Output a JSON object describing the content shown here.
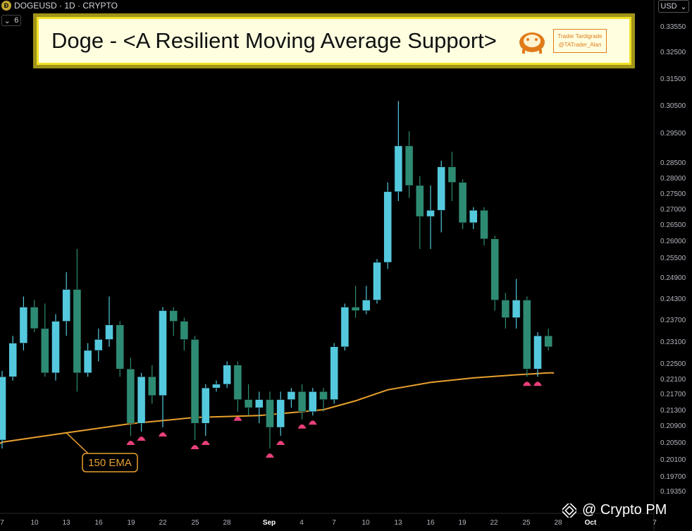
{
  "header": {
    "symbol": "DOGEUSD · 1D · CRYPTO",
    "interval_badge": "6",
    "currency": "USD"
  },
  "banner": {
    "title": "Doge - <A Resilient Moving Average Support>",
    "brand_line1": "Trader Tardigrade",
    "brand_line2": "@TATrader_Alan"
  },
  "watermark": "@ Crypto PM",
  "colors": {
    "background": "#000000",
    "bull_candle": "#54c9de",
    "bear_candle": "#2e8b73",
    "ema_line": "#e8a02e",
    "support_marker": "#e8407a",
    "banner_border": "#f0e226",
    "banner_fill": "#ffffe0"
  },
  "chart_data": {
    "type": "candlestick",
    "y_axis_labels": [
      "0.33550",
      "0.32500",
      "0.31500",
      "0.30500",
      "0.29500",
      "0.28500",
      "0.28000",
      "0.27500",
      "0.27000",
      "0.26500",
      "0.26000",
      "0.25500",
      "0.24900",
      "0.24300",
      "0.23700",
      "0.23100",
      "0.22500",
      "0.22100",
      "0.21700",
      "0.21300",
      "0.20900",
      "0.20500",
      "0.20100",
      "0.19700",
      "0.19350"
    ],
    "x_axis_labels": [
      "7",
      "10",
      "13",
      "16",
      "19",
      "22",
      "25",
      "28",
      "Sep",
      "4",
      "7",
      "10",
      "13",
      "16",
      "19",
      "22",
      "25",
      "28",
      "Oct",
      "7"
    ],
    "series": [
      {
        "o": 0.2055,
        "h": 0.223,
        "l": 0.2035,
        "c": 0.2215
      },
      {
        "o": 0.2215,
        "h": 0.2325,
        "l": 0.2205,
        "c": 0.2305
      },
      {
        "o": 0.2305,
        "h": 0.2435,
        "l": 0.2285,
        "c": 0.2405
      },
      {
        "o": 0.2405,
        "h": 0.2425,
        "l": 0.2335,
        "c": 0.2345
      },
      {
        "o": 0.2345,
        "h": 0.2415,
        "l": 0.2215,
        "c": 0.2225
      },
      {
        "o": 0.2225,
        "h": 0.2385,
        "l": 0.2205,
        "c": 0.2365
      },
      {
        "o": 0.2365,
        "h": 0.2505,
        "l": 0.2325,
        "c": 0.2455
      },
      {
        "o": 0.2455,
        "h": 0.2575,
        "l": 0.2175,
        "c": 0.2225
      },
      {
        "o": 0.2225,
        "h": 0.2305,
        "l": 0.2215,
        "c": 0.2285
      },
      {
        "o": 0.2285,
        "h": 0.2345,
        "l": 0.2255,
        "c": 0.2315
      },
      {
        "o": 0.2315,
        "h": 0.2435,
        "l": 0.2295,
        "c": 0.2355
      },
      {
        "o": 0.2355,
        "h": 0.2365,
        "l": 0.2215,
        "c": 0.2235
      },
      {
        "o": 0.2235,
        "h": 0.2265,
        "l": 0.2065,
        "c": 0.2095
      },
      {
        "o": 0.2095,
        "h": 0.2225,
        "l": 0.2075,
        "c": 0.2215
      },
      {
        "o": 0.2215,
        "h": 0.2245,
        "l": 0.2145,
        "c": 0.2165
      },
      {
        "o": 0.2165,
        "h": 0.2405,
        "l": 0.2085,
        "c": 0.2395
      },
      {
        "o": 0.2395,
        "h": 0.2405,
        "l": 0.2325,
        "c": 0.2365
      },
      {
        "o": 0.2365,
        "h": 0.2375,
        "l": 0.2285,
        "c": 0.2315
      },
      {
        "o": 0.2315,
        "h": 0.2325,
        "l": 0.2055,
        "c": 0.2095
      },
      {
        "o": 0.2095,
        "h": 0.2195,
        "l": 0.2065,
        "c": 0.2185
      },
      {
        "o": 0.2185,
        "h": 0.2205,
        "l": 0.2175,
        "c": 0.2195
      },
      {
        "o": 0.2195,
        "h": 0.2255,
        "l": 0.2185,
        "c": 0.2245
      },
      {
        "o": 0.2245,
        "h": 0.2255,
        "l": 0.2125,
        "c": 0.2155
      },
      {
        "o": 0.2155,
        "h": 0.2195,
        "l": 0.2115,
        "c": 0.2135
      },
      {
        "o": 0.2135,
        "h": 0.2175,
        "l": 0.2095,
        "c": 0.2155
      },
      {
        "o": 0.2155,
        "h": 0.2175,
        "l": 0.2035,
        "c": 0.2085
      },
      {
        "o": 0.2085,
        "h": 0.2175,
        "l": 0.2065,
        "c": 0.2155
      },
      {
        "o": 0.2155,
        "h": 0.2185,
        "l": 0.2135,
        "c": 0.2175
      },
      {
        "o": 0.2175,
        "h": 0.2195,
        "l": 0.2105,
        "c": 0.2125
      },
      {
        "o": 0.2125,
        "h": 0.2185,
        "l": 0.2115,
        "c": 0.2175
      },
      {
        "o": 0.2175,
        "h": 0.2185,
        "l": 0.2125,
        "c": 0.2155
      },
      {
        "o": 0.2155,
        "h": 0.2305,
        "l": 0.2145,
        "c": 0.2295
      },
      {
        "o": 0.2295,
        "h": 0.2415,
        "l": 0.2285,
        "c": 0.2405
      },
      {
        "o": 0.2405,
        "h": 0.2465,
        "l": 0.2375,
        "c": 0.2395
      },
      {
        "o": 0.2395,
        "h": 0.2465,
        "l": 0.2385,
        "c": 0.2425
      },
      {
        "o": 0.2425,
        "h": 0.2545,
        "l": 0.2415,
        "c": 0.2535
      },
      {
        "o": 0.2535,
        "h": 0.2785,
        "l": 0.2515,
        "c": 0.2755
      },
      {
        "o": 0.2755,
        "h": 0.3065,
        "l": 0.2725,
        "c": 0.2905
      },
      {
        "o": 0.2905,
        "h": 0.2955,
        "l": 0.2735,
        "c": 0.2775
      },
      {
        "o": 0.2775,
        "h": 0.2805,
        "l": 0.2575,
        "c": 0.2675
      },
      {
        "o": 0.2675,
        "h": 0.2775,
        "l": 0.2575,
        "c": 0.2695
      },
      {
        "o": 0.2695,
        "h": 0.2855,
        "l": 0.2625,
        "c": 0.2835
      },
      {
        "o": 0.2835,
        "h": 0.2885,
        "l": 0.2725,
        "c": 0.2785
      },
      {
        "o": 0.2785,
        "h": 0.2795,
        "l": 0.2635,
        "c": 0.2655
      },
      {
        "o": 0.2655,
        "h": 0.2705,
        "l": 0.2635,
        "c": 0.2695
      },
      {
        "o": 0.2695,
        "h": 0.2705,
        "l": 0.2585,
        "c": 0.2605
      },
      {
        "o": 0.2605,
        "h": 0.2615,
        "l": 0.2395,
        "c": 0.2425
      },
      {
        "o": 0.2425,
        "h": 0.2445,
        "l": 0.2345,
        "c": 0.2375
      },
      {
        "o": 0.2375,
        "h": 0.2485,
        "l": 0.2345,
        "c": 0.2425
      },
      {
        "o": 0.2425,
        "h": 0.2435,
        "l": 0.2215,
        "c": 0.2235
      },
      {
        "o": 0.2235,
        "h": 0.2335,
        "l": 0.2215,
        "c": 0.2325
      },
      {
        "o": 0.2325,
        "h": 0.2345,
        "l": 0.2285,
        "c": 0.2295
      }
    ],
    "ema": {
      "label": "150 EMA",
      "points": [
        [
          0,
          0.205
        ],
        [
          6,
          0.2072
        ],
        [
          12,
          0.2094
        ],
        [
          18,
          0.211
        ],
        [
          24,
          0.2115
        ],
        [
          30,
          0.213
        ],
        [
          33,
          0.2152
        ],
        [
          36,
          0.218
        ],
        [
          40,
          0.22
        ],
        [
          44,
          0.2212
        ],
        [
          48,
          0.222
        ],
        [
          51,
          0.2225
        ]
      ]
    },
    "support_touches": [
      12,
      13,
      15,
      18,
      19,
      22,
      25,
      26,
      28,
      29,
      49,
      50
    ]
  }
}
